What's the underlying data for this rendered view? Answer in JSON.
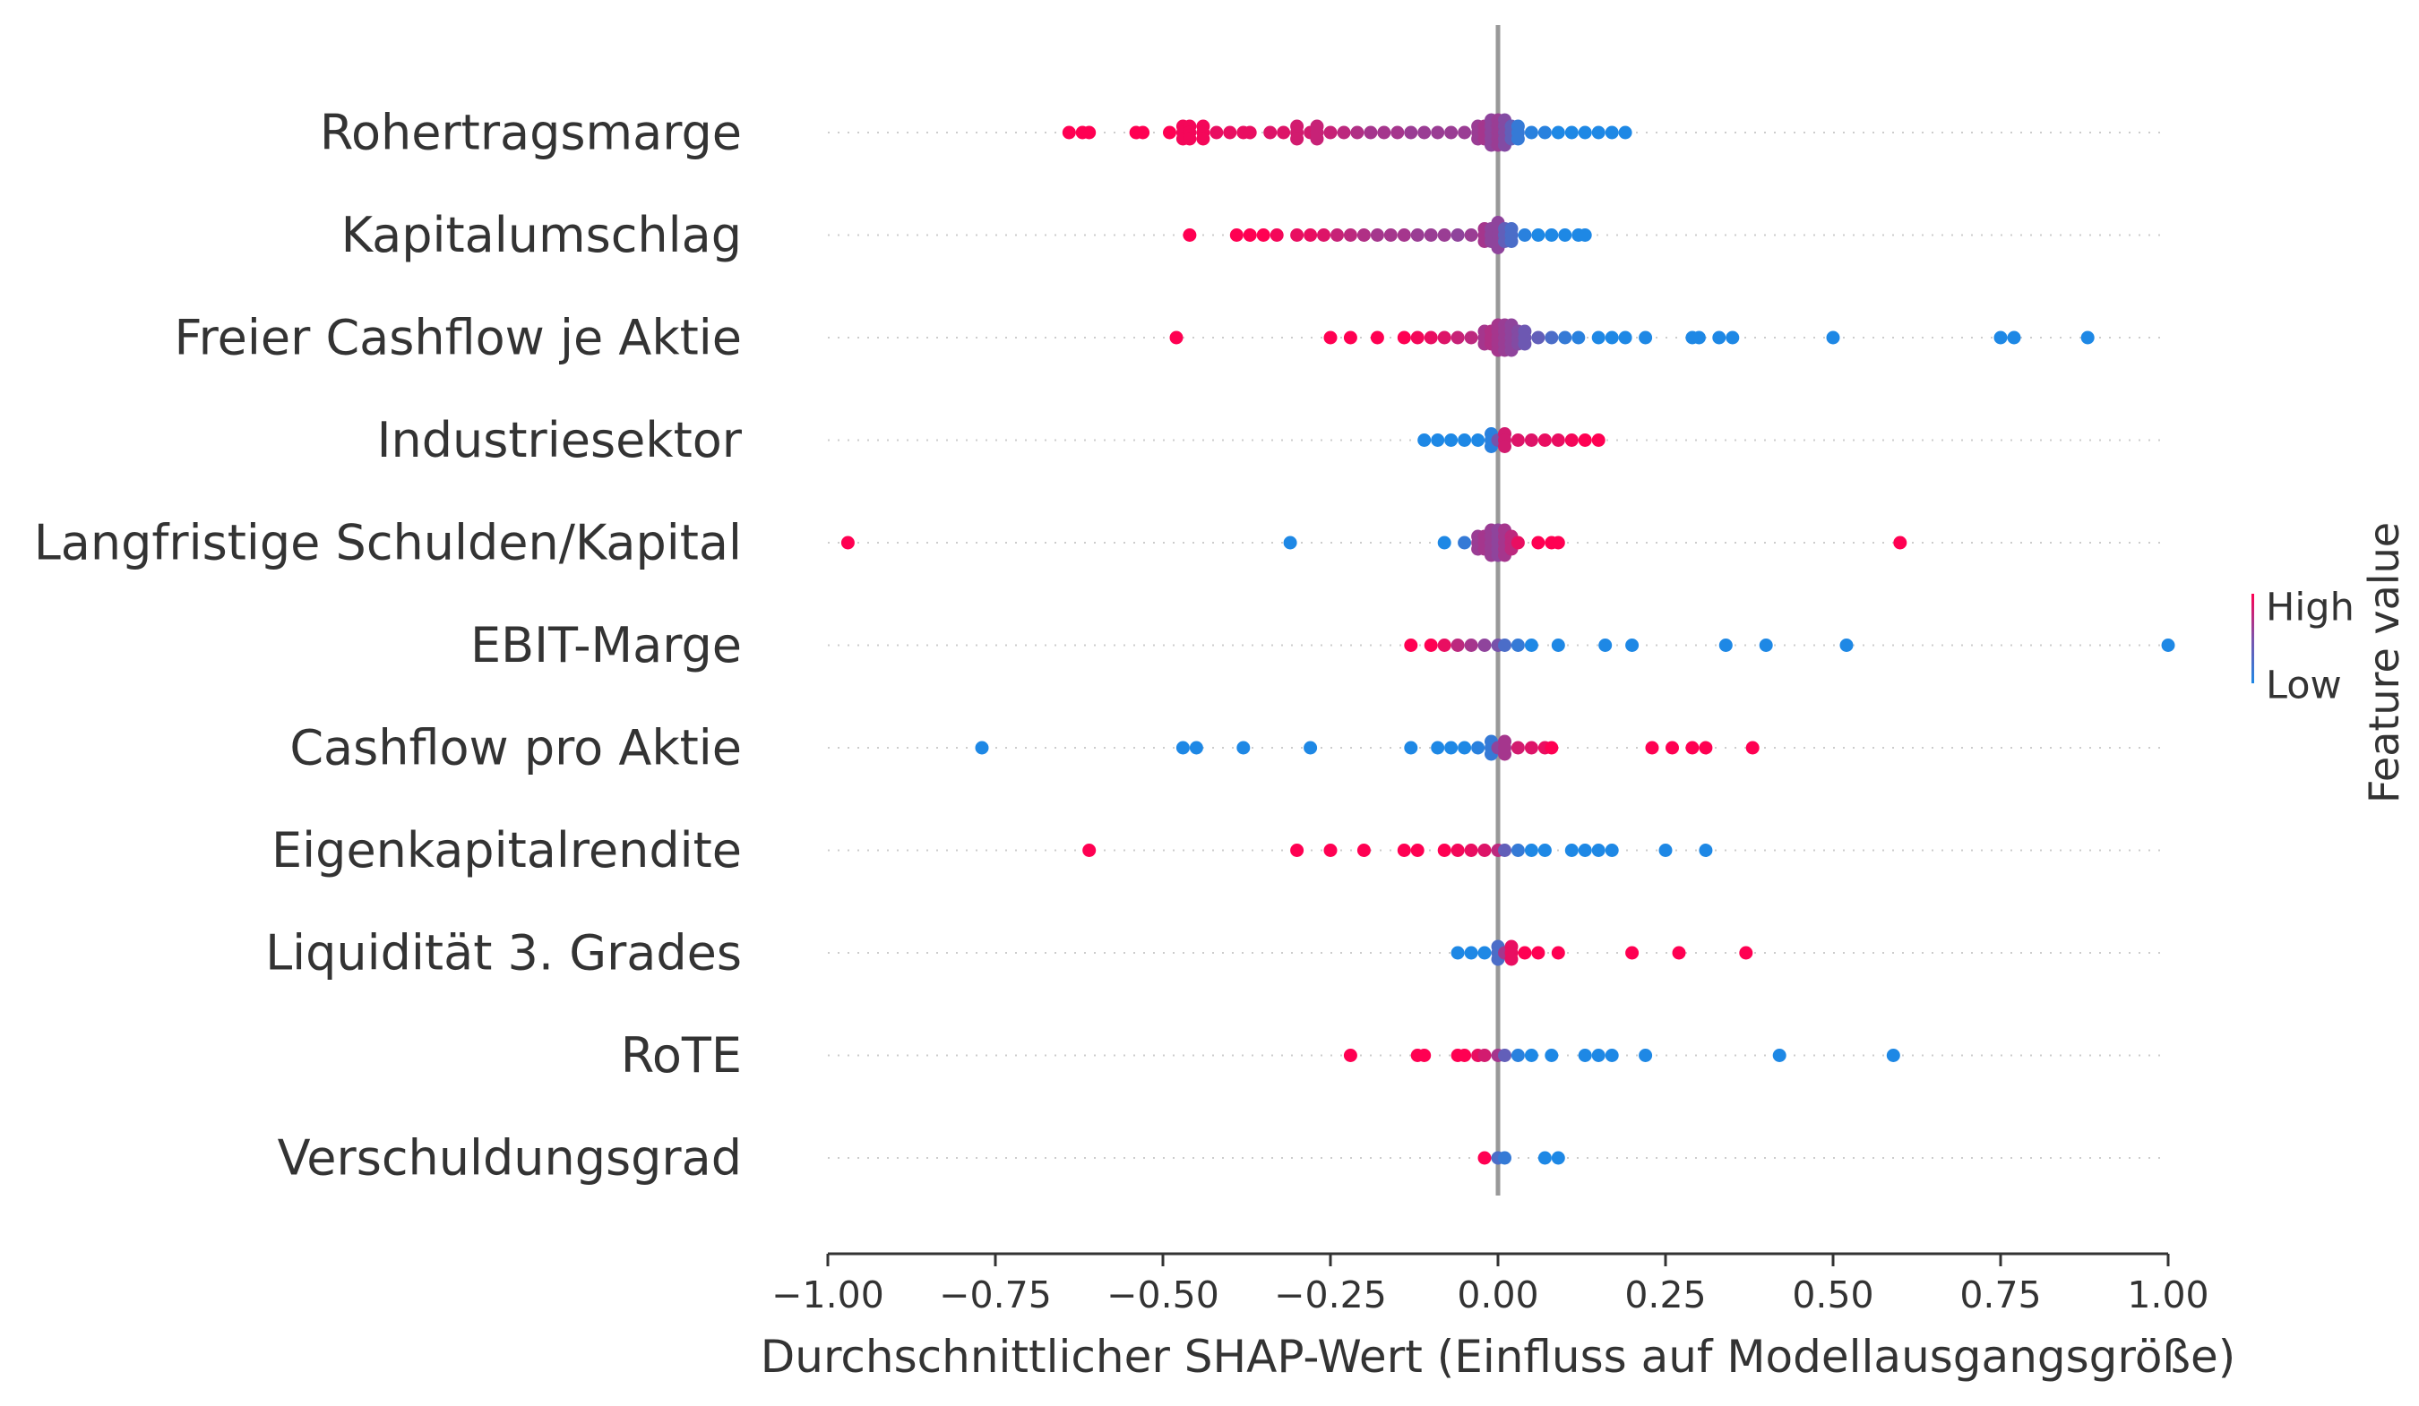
{
  "chart_data": {
    "type": "scatter",
    "subtype": "shap-beeswarm",
    "title": "",
    "xlabel": "Durchschnittlicher SHAP-Wert (Einfluss auf Modellausgangsgröße)",
    "ylabel": "",
    "xlim": [
      -1.0,
      1.0
    ],
    "x_ticks": [
      -1.0,
      -0.75,
      -0.5,
      -0.25,
      0.0,
      0.25,
      0.5,
      0.75,
      1.0
    ],
    "x_tick_labels": [
      "−1.00",
      "−0.75",
      "−0.50",
      "−0.25",
      "0.00",
      "0.25",
      "0.50",
      "0.75",
      "1.00"
    ],
    "zero_line": 0.0,
    "grid": "dotted horizontal row guides",
    "colorbar": {
      "title": "Feature value",
      "high_label": "High",
      "low_label": "Low",
      "high_color": "#ff0052",
      "low_color": "#1e88e5",
      "placement": "right"
    },
    "features": [
      {
        "name": "Rohertragsmarge",
        "points": [
          {
            "x": -0.64,
            "c": 1.0
          },
          {
            "x": -0.62,
            "c": 1.0
          },
          {
            "x": -0.61,
            "c": 1.0
          },
          {
            "x": -0.54,
            "c": 1.0
          },
          {
            "x": -0.53,
            "c": 1.0
          },
          {
            "x": -0.49,
            "c": 1.0
          },
          {
            "x": -0.47,
            "c": 0.95
          },
          {
            "x": -0.46,
            "c": 0.95
          },
          {
            "x": -0.44,
            "c": 0.95
          },
          {
            "x": -0.42,
            "c": 0.9
          },
          {
            "x": -0.4,
            "c": 0.9
          },
          {
            "x": -0.38,
            "c": 0.9
          },
          {
            "x": -0.37,
            "c": 0.9
          },
          {
            "x": -0.34,
            "c": 0.85
          },
          {
            "x": -0.32,
            "c": 0.85
          },
          {
            "x": -0.3,
            "c": 0.8
          },
          {
            "x": -0.28,
            "c": 0.8
          },
          {
            "x": -0.27,
            "c": 0.75
          },
          {
            "x": -0.25,
            "c": 0.75
          },
          {
            "x": -0.23,
            "c": 0.7
          },
          {
            "x": -0.21,
            "c": 0.65
          },
          {
            "x": -0.19,
            "c": 0.6
          },
          {
            "x": -0.17,
            "c": 0.6
          },
          {
            "x": -0.15,
            "c": 0.6
          },
          {
            "x": -0.13,
            "c": 0.55
          },
          {
            "x": -0.11,
            "c": 0.55
          },
          {
            "x": -0.09,
            "c": 0.55
          },
          {
            "x": -0.07,
            "c": 0.55
          },
          {
            "x": -0.05,
            "c": 0.55
          },
          {
            "x": -0.03,
            "c": 0.55
          },
          {
            "x": -0.02,
            "c": 0.6
          },
          {
            "x": -0.01,
            "c": 0.5
          },
          {
            "x": 0.0,
            "c": 0.55
          },
          {
            "x": 0.01,
            "c": 0.45
          },
          {
            "x": 0.02,
            "c": 0.3
          },
          {
            "x": 0.03,
            "c": 0.1
          },
          {
            "x": 0.05,
            "c": 0.05
          },
          {
            "x": 0.07,
            "c": 0.05
          },
          {
            "x": 0.09,
            "c": 0.0
          },
          {
            "x": 0.11,
            "c": 0.0
          },
          {
            "x": 0.13,
            "c": 0.0
          },
          {
            "x": 0.15,
            "c": 0.0
          },
          {
            "x": 0.17,
            "c": 0.0
          },
          {
            "x": 0.19,
            "c": 0.0
          }
        ]
      },
      {
        "name": "Kapitalumschlag",
        "points": [
          {
            "x": -0.46,
            "c": 1.0
          },
          {
            "x": -0.39,
            "c": 1.0
          },
          {
            "x": -0.37,
            "c": 1.0
          },
          {
            "x": -0.35,
            "c": 1.0
          },
          {
            "x": -0.33,
            "c": 0.95
          },
          {
            "x": -0.3,
            "c": 0.9
          },
          {
            "x": -0.28,
            "c": 0.9
          },
          {
            "x": -0.26,
            "c": 0.85
          },
          {
            "x": -0.24,
            "c": 0.75
          },
          {
            "x": -0.22,
            "c": 0.7
          },
          {
            "x": -0.2,
            "c": 0.65
          },
          {
            "x": -0.18,
            "c": 0.6
          },
          {
            "x": -0.16,
            "c": 0.6
          },
          {
            "x": -0.14,
            "c": 0.6
          },
          {
            "x": -0.12,
            "c": 0.55
          },
          {
            "x": -0.1,
            "c": 0.55
          },
          {
            "x": -0.08,
            "c": 0.55
          },
          {
            "x": -0.06,
            "c": 0.5
          },
          {
            "x": -0.04,
            "c": 0.55
          },
          {
            "x": -0.02,
            "c": 0.6
          },
          {
            "x": -0.01,
            "c": 0.5
          },
          {
            "x": 0.0,
            "c": 0.5
          },
          {
            "x": 0.01,
            "c": 0.3
          },
          {
            "x": 0.02,
            "c": 0.2
          },
          {
            "x": 0.04,
            "c": 0.05
          },
          {
            "x": 0.06,
            "c": 0.0
          },
          {
            "x": 0.08,
            "c": 0.0
          },
          {
            "x": 0.1,
            "c": 0.0
          },
          {
            "x": 0.12,
            "c": 0.0
          },
          {
            "x": 0.13,
            "c": 0.0
          }
        ]
      },
      {
        "name": "Freier Cashflow je Aktie",
        "points": [
          {
            "x": -0.48,
            "c": 1.0
          },
          {
            "x": -0.25,
            "c": 1.0
          },
          {
            "x": -0.22,
            "c": 1.0
          },
          {
            "x": -0.18,
            "c": 1.0
          },
          {
            "x": -0.14,
            "c": 1.0
          },
          {
            "x": -0.12,
            "c": 0.95
          },
          {
            "x": -0.1,
            "c": 0.9
          },
          {
            "x": -0.08,
            "c": 0.85
          },
          {
            "x": -0.06,
            "c": 0.75
          },
          {
            "x": -0.04,
            "c": 0.7
          },
          {
            "x": -0.02,
            "c": 0.6
          },
          {
            "x": -0.01,
            "c": 0.65
          },
          {
            "x": 0.0,
            "c": 0.6
          },
          {
            "x": 0.01,
            "c": 0.55
          },
          {
            "x": 0.02,
            "c": 0.5
          },
          {
            "x": 0.03,
            "c": 0.45
          },
          {
            "x": 0.04,
            "c": 0.35
          },
          {
            "x": 0.06,
            "c": 0.3
          },
          {
            "x": 0.08,
            "c": 0.2
          },
          {
            "x": 0.1,
            "c": 0.1
          },
          {
            "x": 0.12,
            "c": 0.05
          },
          {
            "x": 0.15,
            "c": 0.0
          },
          {
            "x": 0.17,
            "c": 0.0
          },
          {
            "x": 0.19,
            "c": 0.0
          },
          {
            "x": 0.22,
            "c": 0.0
          },
          {
            "x": 0.29,
            "c": 0.0
          },
          {
            "x": 0.3,
            "c": 0.0
          },
          {
            "x": 0.33,
            "c": 0.0
          },
          {
            "x": 0.35,
            "c": 0.0
          },
          {
            "x": 0.5,
            "c": 0.0
          },
          {
            "x": 0.75,
            "c": 0.0
          },
          {
            "x": 0.77,
            "c": 0.0
          },
          {
            "x": 0.88,
            "c": 0.0
          }
        ]
      },
      {
        "name": "Industriesektor",
        "points": [
          {
            "x": -0.11,
            "c": 0.0
          },
          {
            "x": -0.09,
            "c": 0.0
          },
          {
            "x": -0.07,
            "c": 0.0
          },
          {
            "x": -0.05,
            "c": 0.0
          },
          {
            "x": -0.03,
            "c": 0.0
          },
          {
            "x": -0.01,
            "c": 0.05
          },
          {
            "x": 0.0,
            "c": 0.4
          },
          {
            "x": 0.01,
            "c": 0.8
          },
          {
            "x": 0.03,
            "c": 0.85
          },
          {
            "x": 0.05,
            "c": 0.85
          },
          {
            "x": 0.07,
            "c": 0.9
          },
          {
            "x": 0.09,
            "c": 0.9
          },
          {
            "x": 0.11,
            "c": 0.95
          },
          {
            "x": 0.13,
            "c": 1.0
          },
          {
            "x": 0.15,
            "c": 1.0
          }
        ]
      },
      {
        "name": "Langfristige Schulden/Kapital",
        "points": [
          {
            "x": -0.97,
            "c": 1.0
          },
          {
            "x": -0.31,
            "c": 0.0
          },
          {
            "x": -0.08,
            "c": 0.0
          },
          {
            "x": -0.05,
            "c": 0.1
          },
          {
            "x": -0.03,
            "c": 0.55
          },
          {
            "x": -0.02,
            "c": 0.6
          },
          {
            "x": -0.01,
            "c": 0.55
          },
          {
            "x": 0.0,
            "c": 0.5
          },
          {
            "x": 0.01,
            "c": 0.6
          },
          {
            "x": 0.02,
            "c": 0.7
          },
          {
            "x": 0.03,
            "c": 0.9
          },
          {
            "x": 0.06,
            "c": 1.0
          },
          {
            "x": 0.08,
            "c": 1.0
          },
          {
            "x": 0.09,
            "c": 1.0
          },
          {
            "x": 0.6,
            "c": 1.0
          }
        ]
      },
      {
        "name": "EBIT-Marge",
        "points": [
          {
            "x": -0.13,
            "c": 1.0
          },
          {
            "x": -0.1,
            "c": 1.0
          },
          {
            "x": -0.08,
            "c": 0.9
          },
          {
            "x": -0.06,
            "c": 0.7
          },
          {
            "x": -0.04,
            "c": 0.6
          },
          {
            "x": -0.02,
            "c": 0.5
          },
          {
            "x": 0.0,
            "c": 0.4
          },
          {
            "x": 0.01,
            "c": 0.2
          },
          {
            "x": 0.03,
            "c": 0.1
          },
          {
            "x": 0.05,
            "c": 0.0
          },
          {
            "x": 0.09,
            "c": 0.0
          },
          {
            "x": 0.16,
            "c": 0.0
          },
          {
            "x": 0.2,
            "c": 0.0
          },
          {
            "x": 0.34,
            "c": 0.0
          },
          {
            "x": 0.4,
            "c": 0.0
          },
          {
            "x": 0.52,
            "c": 0.0
          },
          {
            "x": 1.0,
            "c": 0.0
          }
        ]
      },
      {
        "name": "Cashflow pro Aktie",
        "points": [
          {
            "x": -0.77,
            "c": 0.0
          },
          {
            "x": -0.47,
            "c": 0.0
          },
          {
            "x": -0.45,
            "c": 0.0
          },
          {
            "x": -0.38,
            "c": 0.0
          },
          {
            "x": -0.28,
            "c": 0.0
          },
          {
            "x": -0.13,
            "c": 0.0
          },
          {
            "x": -0.09,
            "c": 0.0
          },
          {
            "x": -0.07,
            "c": 0.0
          },
          {
            "x": -0.05,
            "c": 0.0
          },
          {
            "x": -0.03,
            "c": 0.05
          },
          {
            "x": -0.01,
            "c": 0.1
          },
          {
            "x": 0.0,
            "c": 0.5
          },
          {
            "x": 0.01,
            "c": 0.6
          },
          {
            "x": 0.03,
            "c": 0.8
          },
          {
            "x": 0.05,
            "c": 0.85
          },
          {
            "x": 0.07,
            "c": 0.9
          },
          {
            "x": 0.08,
            "c": 1.0
          },
          {
            "x": 0.23,
            "c": 1.0
          },
          {
            "x": 0.26,
            "c": 1.0
          },
          {
            "x": 0.29,
            "c": 1.0
          },
          {
            "x": 0.31,
            "c": 1.0
          },
          {
            "x": 0.38,
            "c": 1.0
          }
        ]
      },
      {
        "name": "Eigenkapitalrendite",
        "points": [
          {
            "x": -0.61,
            "c": 1.0
          },
          {
            "x": -0.3,
            "c": 1.0
          },
          {
            "x": -0.25,
            "c": 1.0
          },
          {
            "x": -0.2,
            "c": 1.0
          },
          {
            "x": -0.14,
            "c": 1.0
          },
          {
            "x": -0.12,
            "c": 1.0
          },
          {
            "x": -0.08,
            "c": 1.0
          },
          {
            "x": -0.06,
            "c": 0.95
          },
          {
            "x": -0.04,
            "c": 0.9
          },
          {
            "x": -0.02,
            "c": 0.85
          },
          {
            "x": 0.0,
            "c": 0.7
          },
          {
            "x": 0.01,
            "c": 0.3
          },
          {
            "x": 0.03,
            "c": 0.1
          },
          {
            "x": 0.05,
            "c": 0.0
          },
          {
            "x": 0.07,
            "c": 0.0
          },
          {
            "x": 0.11,
            "c": 0.0
          },
          {
            "x": 0.13,
            "c": 0.0
          },
          {
            "x": 0.15,
            "c": 0.0
          },
          {
            "x": 0.17,
            "c": 0.0
          },
          {
            "x": 0.25,
            "c": 0.0
          },
          {
            "x": 0.31,
            "c": 0.0
          }
        ]
      },
      {
        "name": "Liquidität 3. Grades",
        "points": [
          {
            "x": -0.06,
            "c": 0.0
          },
          {
            "x": -0.04,
            "c": 0.0
          },
          {
            "x": -0.02,
            "c": 0.0
          },
          {
            "x": 0.0,
            "c": 0.2
          },
          {
            "x": 0.01,
            "c": 0.6
          },
          {
            "x": 0.02,
            "c": 0.9
          },
          {
            "x": 0.04,
            "c": 1.0
          },
          {
            "x": 0.06,
            "c": 1.0
          },
          {
            "x": 0.09,
            "c": 1.0
          },
          {
            "x": 0.2,
            "c": 1.0
          },
          {
            "x": 0.27,
            "c": 1.0
          },
          {
            "x": 0.37,
            "c": 1.0
          }
        ]
      },
      {
        "name": "RoTE",
        "points": [
          {
            "x": -0.22,
            "c": 1.0
          },
          {
            "x": -0.12,
            "c": 1.0
          },
          {
            "x": -0.11,
            "c": 1.0
          },
          {
            "x": -0.06,
            "c": 1.0
          },
          {
            "x": -0.05,
            "c": 1.0
          },
          {
            "x": -0.03,
            "c": 0.9
          },
          {
            "x": -0.02,
            "c": 0.8
          },
          {
            "x": 0.0,
            "c": 0.6
          },
          {
            "x": 0.01,
            "c": 0.3
          },
          {
            "x": 0.03,
            "c": 0.05
          },
          {
            "x": 0.05,
            "c": 0.0
          },
          {
            "x": 0.08,
            "c": 0.0
          },
          {
            "x": 0.13,
            "c": 0.0
          },
          {
            "x": 0.15,
            "c": 0.0
          },
          {
            "x": 0.17,
            "c": 0.0
          },
          {
            "x": 0.22,
            "c": 0.0
          },
          {
            "x": 0.42,
            "c": 0.0
          },
          {
            "x": 0.59,
            "c": 0.0
          }
        ]
      },
      {
        "name": "Verschuldungsgrad",
        "points": [
          {
            "x": -0.02,
            "c": 1.0
          },
          {
            "x": 0.0,
            "c": 0.2
          },
          {
            "x": 0.01,
            "c": 0.1
          },
          {
            "x": 0.07,
            "c": 0.0
          },
          {
            "x": 0.09,
            "c": 0.0
          }
        ]
      }
    ]
  }
}
